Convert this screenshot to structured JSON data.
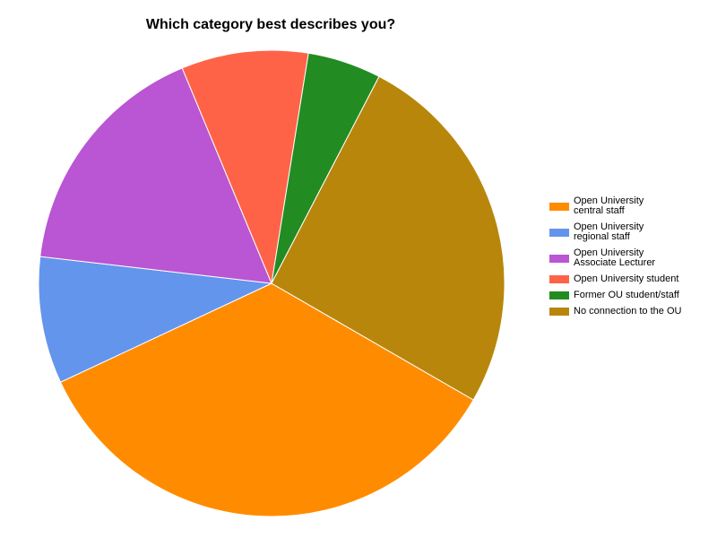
{
  "chart_data": {
    "type": "pie",
    "title": "Which category best describes you?",
    "categories": [
      "Open University\ncentral staff",
      "Open University\nregional staff",
      "Open University\nAssociate Lecturer",
      "Open University student",
      "Former OU student/staff",
      "No connection to the OU"
    ],
    "values": [
      34.7,
      8.8,
      16.9,
      8.8,
      5.1,
      25.7
    ],
    "colors": [
      "#ff8c00",
      "#6495ed",
      "#ba55d3",
      "#ff6347",
      "#228b22",
      "#b8860b"
    ],
    "legend": "right"
  }
}
